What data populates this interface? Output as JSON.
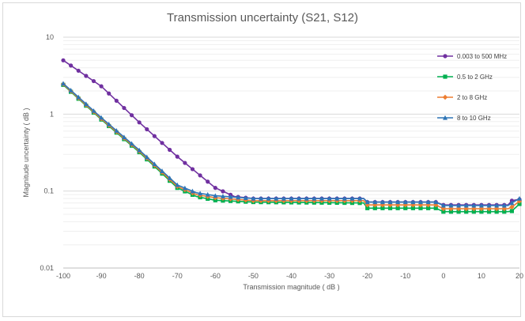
{
  "chart_data": {
    "type": "line",
    "title": "Transmission uncertainty (S21, S12)",
    "xlabel": "Transmission magnitude ( dB )",
    "ylabel": "Magnitude uncertainty ( dB )",
    "xlim": [
      -100,
      20
    ],
    "ylim": [
      0.01,
      10
    ],
    "yscale": "log",
    "xticks": [
      "-100",
      "-90",
      "-80",
      "-70",
      "-60",
      "-50",
      "-40",
      "-30",
      "-20",
      "-10",
      "0",
      "10",
      "20"
    ],
    "yticks": [
      "10",
      "1",
      "0.1",
      "0.01"
    ],
    "grid": true,
    "legend_position": "right",
    "series": [
      {
        "name": "0.003 to 500 MHz",
        "color": "#7030a0",
        "marker": "circle",
        "points": [
          [
            -100,
            5.0
          ],
          [
            -90,
            2.3
          ],
          [
            -80,
            0.78
          ],
          [
            -70,
            0.28
          ],
          [
            -60,
            0.11
          ],
          [
            -55,
            0.085
          ],
          [
            -50,
            0.08
          ],
          [
            -21,
            0.08
          ],
          [
            -20,
            0.072
          ],
          [
            -2,
            0.072
          ],
          [
            0,
            0.066
          ],
          [
            17,
            0.066
          ],
          [
            18,
            0.075
          ],
          [
            20,
            0.078
          ]
        ]
      },
      {
        "name": "0.5 to 2 GHz",
        "color": "#00b050",
        "marker": "square",
        "points": [
          [
            -100,
            2.4
          ],
          [
            -90,
            0.85
          ],
          [
            -80,
            0.32
          ],
          [
            -70,
            0.11
          ],
          [
            -65,
            0.085
          ],
          [
            -60,
            0.076
          ],
          [
            -50,
            0.072
          ],
          [
            -21,
            0.07
          ],
          [
            -20,
            0.06
          ],
          [
            -2,
            0.06
          ],
          [
            0,
            0.054
          ],
          [
            17,
            0.054
          ],
          [
            18,
            0.055
          ],
          [
            20,
            0.068
          ]
        ]
      },
      {
        "name": "2 to 8 GHz",
        "color": "#ed7d31",
        "marker": "diamond",
        "points": [
          [
            -100,
            2.45
          ],
          [
            -90,
            0.87
          ],
          [
            -80,
            0.33
          ],
          [
            -70,
            0.115
          ],
          [
            -65,
            0.09
          ],
          [
            -60,
            0.082
          ],
          [
            -50,
            0.075
          ],
          [
            -21,
            0.075
          ],
          [
            -20,
            0.066
          ],
          [
            -2,
            0.066
          ],
          [
            0,
            0.059
          ],
          [
            17,
            0.059
          ],
          [
            18,
            0.062
          ],
          [
            20,
            0.074
          ]
        ]
      },
      {
        "name": "8 to 10 GHz",
        "color": "#2e75b6",
        "marker": "triangle",
        "points": [
          [
            -100,
            2.5
          ],
          [
            -90,
            0.9
          ],
          [
            -80,
            0.34
          ],
          [
            -70,
            0.12
          ],
          [
            -65,
            0.095
          ],
          [
            -60,
            0.087
          ],
          [
            -50,
            0.08
          ],
          [
            -21,
            0.08
          ],
          [
            -20,
            0.072
          ],
          [
            -2,
            0.072
          ],
          [
            0,
            0.065
          ],
          [
            17,
            0.065
          ],
          [
            18,
            0.07
          ],
          [
            20,
            0.08
          ]
        ]
      }
    ]
  }
}
